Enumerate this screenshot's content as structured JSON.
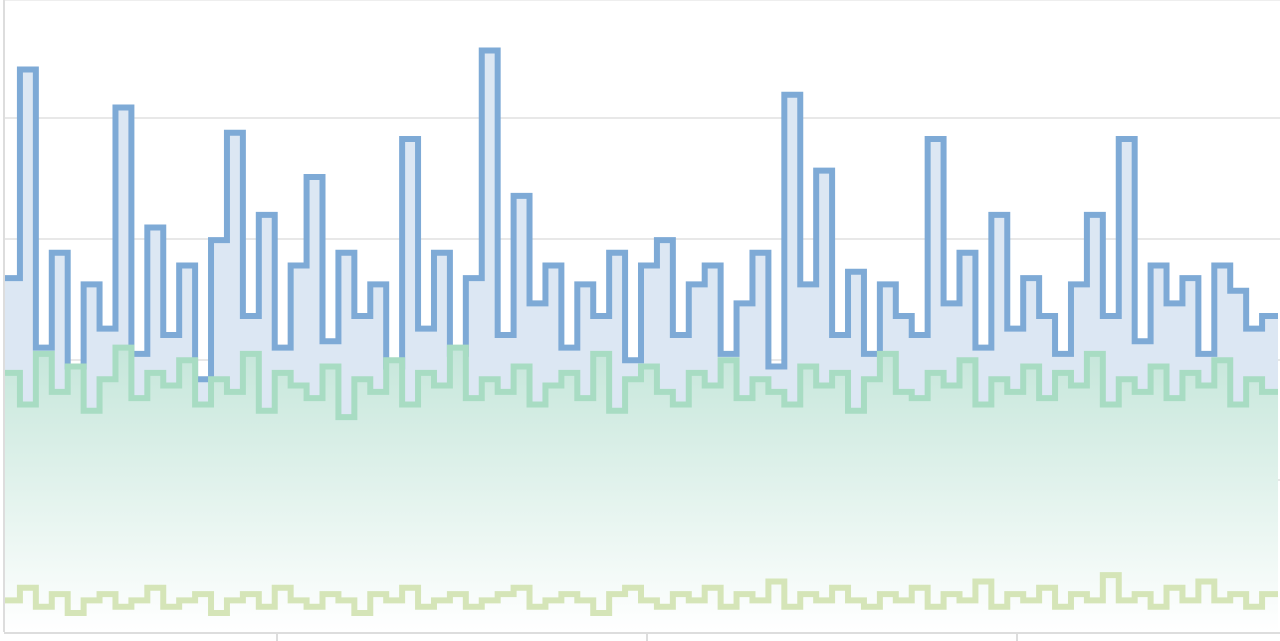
{
  "chart_data": {
    "type": "line",
    "title": "",
    "xlabel": "",
    "ylabel": "",
    "ylim": [
      0,
      100
    ],
    "grid": true,
    "legend": "none",
    "step": true,
    "series": [
      {
        "color": "#7eaad6",
        "fill": "#dce7f3",
        "values": [
          56,
          89,
          45,
          60,
          42,
          55,
          48,
          83,
          44,
          64,
          47,
          58,
          40,
          62,
          79,
          50,
          66,
          45,
          58,
          72,
          46,
          60,
          50,
          55,
          42,
          78,
          48,
          60,
          44,
          56,
          92,
          47,
          69,
          52,
          58,
          45,
          55,
          50,
          60,
          43,
          58,
          62,
          47,
          55,
          58,
          44,
          52,
          60,
          42,
          85,
          55,
          73,
          47,
          57,
          44,
          55,
          50,
          47,
          78,
          52,
          60,
          45,
          66,
          48,
          56,
          50,
          44,
          55,
          66,
          50,
          78,
          46,
          58,
          52,
          56,
          44,
          58,
          54,
          48,
          50
        ]
      },
      {
        "color": "#a8dcc3",
        "fill_gradient": [
          "#c5e6da",
          "#ffffff"
        ],
        "values": [
          41,
          36,
          44,
          38,
          42,
          35,
          40,
          45,
          37,
          41,
          39,
          43,
          36,
          40,
          38,
          44,
          35,
          41,
          39,
          37,
          42,
          34,
          40,
          38,
          43,
          36,
          41,
          39,
          45,
          37,
          40,
          38,
          42,
          36,
          39,
          41,
          37,
          44,
          35,
          40,
          42,
          38,
          36,
          41,
          39,
          43,
          37,
          40,
          38,
          36,
          42,
          39,
          41,
          35,
          40,
          44,
          38,
          37,
          41,
          39,
          43,
          36,
          40,
          38,
          42,
          37,
          41,
          39,
          44,
          36,
          40,
          38,
          42,
          37,
          41,
          39,
          43,
          36,
          40,
          38
        ]
      },
      {
        "color": "#d5e5b8",
        "values": [
          5,
          7,
          4,
          6,
          3,
          5,
          6,
          4,
          5,
          7,
          4,
          5,
          6,
          3,
          5,
          6,
          4,
          7,
          5,
          4,
          6,
          5,
          3,
          6,
          5,
          7,
          4,
          5,
          6,
          4,
          5,
          6,
          7,
          4,
          5,
          6,
          5,
          3,
          6,
          7,
          5,
          4,
          6,
          5,
          7,
          4,
          6,
          5,
          8,
          4,
          6,
          5,
          7,
          5,
          4,
          6,
          5,
          7,
          4,
          6,
          5,
          8,
          4,
          6,
          5,
          7,
          4,
          6,
          5,
          9,
          5,
          6,
          4,
          7,
          5,
          8,
          5,
          6,
          4,
          6
        ]
      }
    ]
  }
}
